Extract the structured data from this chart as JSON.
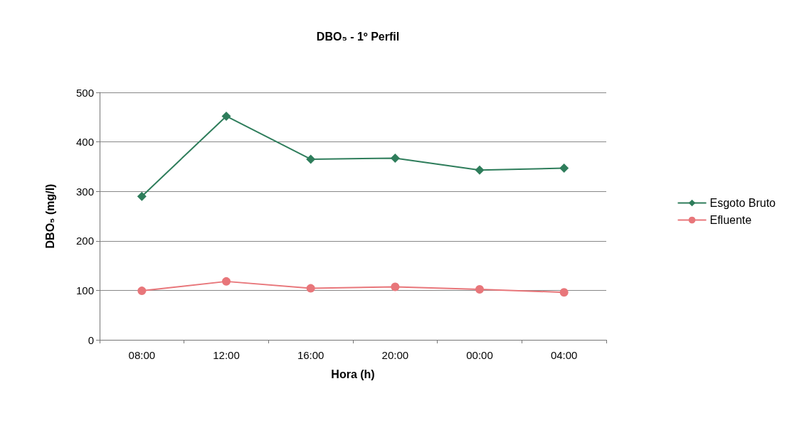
{
  "chart_data": {
    "type": "line",
    "title": "DBO₅ - 1º Perfil",
    "xlabel": "Hora (h)",
    "ylabel": "DBO₅ (mg/l)",
    "categories": [
      "08:00",
      "12:00",
      "16:00",
      "20:00",
      "00:00",
      "04:00"
    ],
    "series": [
      {
        "name": "Esgoto Bruto",
        "color": "#2e7d5b",
        "marker": "diamond",
        "values": [
          290,
          452,
          365,
          367,
          343,
          347
        ]
      },
      {
        "name": "Efluente",
        "color": "#e8767a",
        "marker": "circle",
        "values": [
          99,
          118,
          104,
          107,
          102,
          96
        ]
      }
    ],
    "ylim": [
      0,
      500
    ],
    "yticks": [
      0,
      100,
      200,
      300,
      400,
      500
    ],
    "grid": "y",
    "legend": "right",
    "line_style": "solid"
  }
}
